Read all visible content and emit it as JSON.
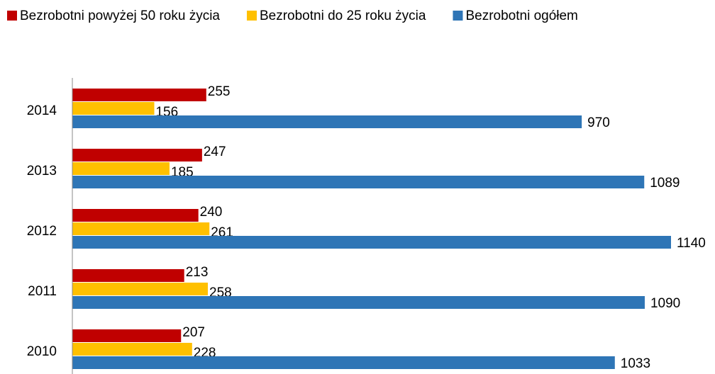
{
  "chart_data": {
    "type": "barh",
    "categories": [
      "2014",
      "2013",
      "2012",
      "2011",
      "2010"
    ],
    "series": [
      {
        "name": "Bezrobotni powyżej 50 roku życia",
        "color": "#c00000",
        "values": [
          255,
          247,
          240,
          213,
          207
        ]
      },
      {
        "name": "Bezrobotni do 25 roku życia",
        "color": "#ffc000",
        "values": [
          156,
          185,
          261,
          258,
          228
        ]
      },
      {
        "name": "Bezrobotni ogółem",
        "color": "#2e75b6",
        "values": [
          970,
          1089,
          1140,
          1090,
          1033
        ]
      }
    ],
    "legend": "top"
  }
}
